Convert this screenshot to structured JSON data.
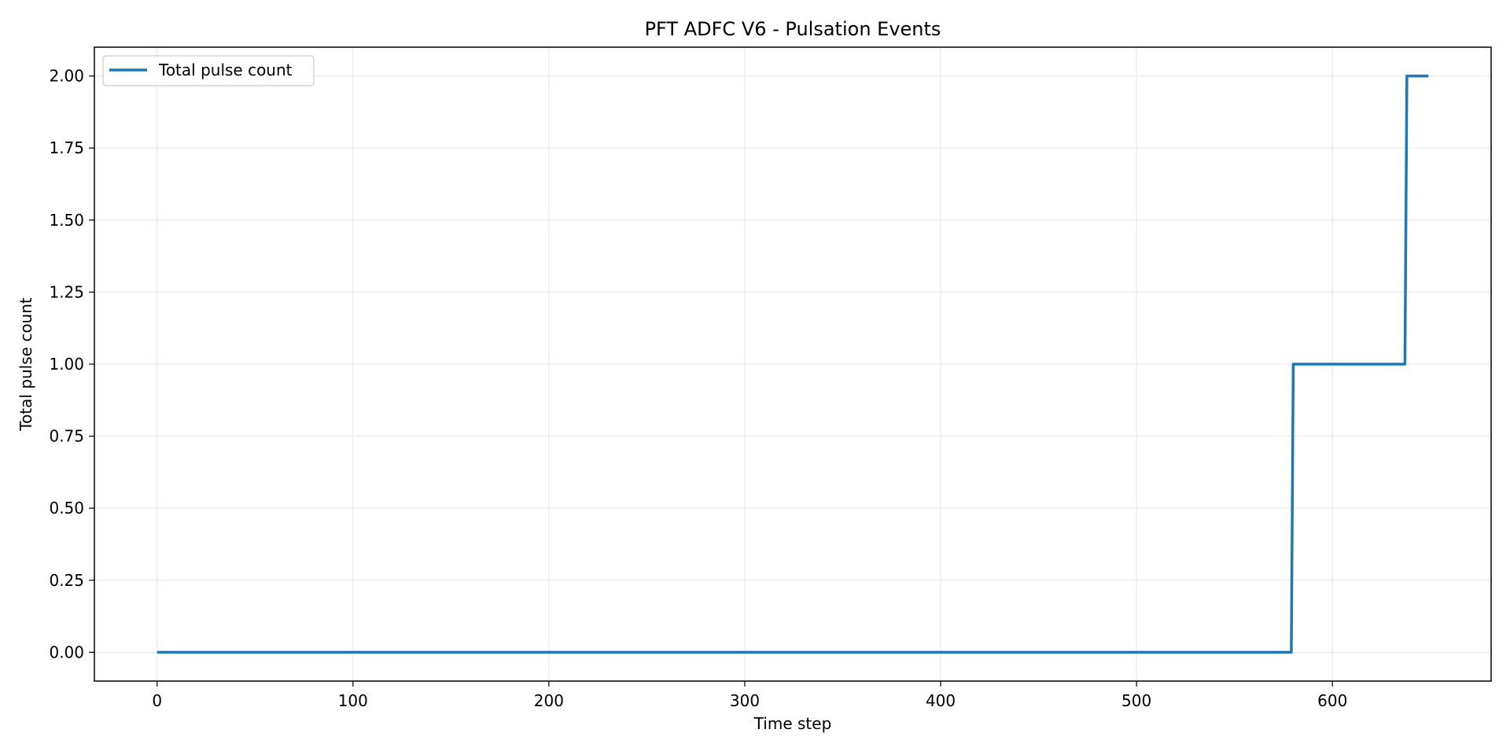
{
  "chart_data": {
    "type": "line",
    "title": "PFT ADFC V6 - Pulsation Events",
    "xlabel": "Time step",
    "ylabel": "Total pulse count",
    "xlim": [
      -32,
      681
    ],
    "ylim": [
      -0.1,
      2.1
    ],
    "xticks": [
      0,
      100,
      200,
      300,
      400,
      500,
      600
    ],
    "yticks": [
      0.0,
      0.25,
      0.5,
      0.75,
      1.0,
      1.25,
      1.5,
      1.75,
      2.0
    ],
    "ytick_labels": [
      "0.00",
      "0.25",
      "0.50",
      "0.75",
      "1.00",
      "1.25",
      "1.50",
      "1.75",
      "2.00"
    ],
    "xtick_labels": [
      "0",
      "100",
      "200",
      "300",
      "400",
      "500",
      "600"
    ],
    "grid": true,
    "legend_position": "top-left",
    "series": [
      {
        "name": "Total pulse count",
        "color": "#1f77b4",
        "x": [
          0,
          579,
          580,
          637,
          638,
          649
        ],
        "y": [
          0,
          0,
          1,
          1,
          2,
          2
        ]
      }
    ]
  }
}
